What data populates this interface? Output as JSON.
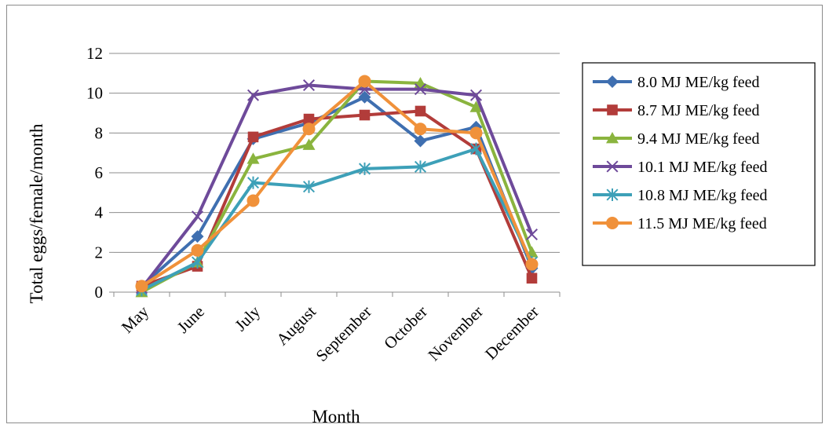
{
  "chart_data": {
    "type": "line",
    "xlabel": "Month",
    "ylabel": "Total eggs/female/month",
    "ylim": [
      0,
      12
    ],
    "yticks": [
      0,
      2,
      4,
      6,
      8,
      10,
      12
    ],
    "categories": [
      "May",
      "June",
      "July",
      "August",
      "September",
      "October",
      "November",
      "December"
    ],
    "grid": "horizontal",
    "legend": "right",
    "series": [
      {
        "name": "8.0 MJ ME/kg feed",
        "color": "#3f6fb0",
        "marker": "diamond",
        "values": [
          0.3,
          2.8,
          7.7,
          8.5,
          9.8,
          7.6,
          8.3,
          1.2
        ]
      },
      {
        "name": "8.7 MJ ME/kg feed",
        "color": "#b23c3a",
        "marker": "square",
        "values": [
          0.3,
          1.3,
          7.8,
          8.7,
          8.9,
          9.1,
          7.2,
          0.7
        ]
      },
      {
        "name": "9.4 MJ ME/kg feed",
        "color": "#8ab43e",
        "marker": "triangle",
        "values": [
          0.0,
          1.5,
          6.7,
          7.4,
          10.6,
          10.5,
          9.3,
          2.0
        ]
      },
      {
        "name": "10.1 MJ ME/kg feed",
        "color": "#6e4a9a",
        "marker": "x",
        "values": [
          0.2,
          3.8,
          9.9,
          10.4,
          10.2,
          10.2,
          9.9,
          2.9
        ]
      },
      {
        "name": "10.8 MJ ME/kg feed",
        "color": "#3da0b8",
        "marker": "star",
        "values": [
          0.1,
          1.5,
          5.5,
          5.3,
          6.2,
          6.3,
          7.2,
          1.5
        ]
      },
      {
        "name": "11.5 MJ ME/kg feed",
        "color": "#f0913a",
        "marker": "circle",
        "values": [
          0.3,
          2.1,
          4.6,
          8.2,
          10.6,
          8.2,
          8.0,
          1.4
        ]
      }
    ]
  }
}
